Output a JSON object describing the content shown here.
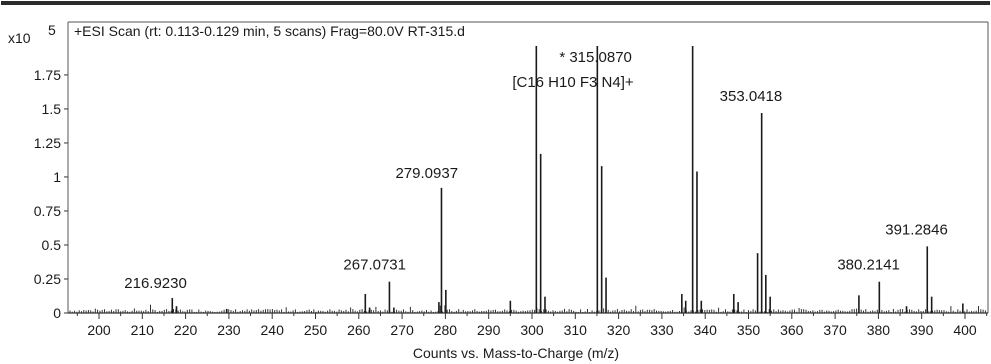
{
  "chart_data": {
    "type": "bar",
    "title": "+ESI Scan (rt: 0.113-0.129 min, 5 scans) Frag=80.0V RT-315.d",
    "xlabel": "Counts vs. Mass-to-Charge (m/z)",
    "ylabel": "",
    "y_multiplier_label": "x10",
    "y_multiplier_exponent": "5",
    "xlim": [
      193,
      406
    ],
    "ylim": [
      0,
      2.0
    ],
    "x_ticks": [
      200,
      210,
      220,
      230,
      240,
      250,
      260,
      270,
      280,
      290,
      300,
      310,
      320,
      330,
      340,
      350,
      360,
      370,
      380,
      390,
      400
    ],
    "y_ticks": [
      {
        "value": 0,
        "label": "0"
      },
      {
        "value": 0.25,
        "label": "0.25"
      },
      {
        "value": 0.5,
        "label": "0.5"
      },
      {
        "value": 0.75,
        "label": "0.75"
      },
      {
        "value": 1.0,
        "label": "1"
      },
      {
        "value": 1.25,
        "label": "1.25"
      },
      {
        "value": 1.5,
        "label": "1.5"
      },
      {
        "value": 1.75,
        "label": "1.75"
      }
    ],
    "grid": false,
    "bar_color": "#1a1a1a",
    "series": [
      {
        "peaks": [
          {
            "x": 216.923,
            "y": 0.11
          },
          {
            "x": 217.9,
            "y": 0.05
          },
          {
            "x": 229.5,
            "y": 0.03
          },
          {
            "x": 261.5,
            "y": 0.14
          },
          {
            "x": 262.5,
            "y": 0.04
          },
          {
            "x": 267.073,
            "y": 0.23
          },
          {
            "x": 268.1,
            "y": 0.04
          },
          {
            "x": 279.0937,
            "y": 0.92
          },
          {
            "x": 280.1,
            "y": 0.17
          },
          {
            "x": 278.5,
            "y": 0.08
          },
          {
            "x": 295.0,
            "y": 0.09
          },
          {
            "x": 301.0,
            "y": 1.97
          },
          {
            "x": 302.0,
            "y": 1.17
          },
          {
            "x": 303.0,
            "y": 0.12
          },
          {
            "x": 315.087,
            "y": 1.97
          },
          {
            "x": 316.09,
            "y": 1.08
          },
          {
            "x": 317.1,
            "y": 0.26
          },
          {
            "x": 334.6,
            "y": 0.14
          },
          {
            "x": 335.5,
            "y": 0.09
          },
          {
            "x": 337.1,
            "y": 1.97
          },
          {
            "x": 338.1,
            "y": 1.04
          },
          {
            "x": 339.1,
            "y": 0.09
          },
          {
            "x": 346.6,
            "y": 0.14
          },
          {
            "x": 347.6,
            "y": 0.08
          },
          {
            "x": 352.1,
            "y": 0.44
          },
          {
            "x": 353.0418,
            "y": 1.47
          },
          {
            "x": 354.0,
            "y": 0.28
          },
          {
            "x": 355.0,
            "y": 0.12
          },
          {
            "x": 375.5,
            "y": 0.13
          },
          {
            "x": 380.2141,
            "y": 0.23
          },
          {
            "x": 386.5,
            "y": 0.05
          },
          {
            "x": 391.2846,
            "y": 0.49
          },
          {
            "x": 392.3,
            "y": 0.12
          },
          {
            "x": 399.5,
            "y": 0.07
          }
        ]
      }
    ],
    "annotations": [
      {
        "text": "216.9230",
        "x": 216.923,
        "y": 0.11
      },
      {
        "text": "267.0731",
        "x": 267.073,
        "y": 0.23
      },
      {
        "text": "279.0937",
        "x": 279.0937,
        "y": 0.92
      },
      {
        "text": "* 315.0870",
        "x": 315.087,
        "y": 1.97
      },
      {
        "text": "[C16 H10 F3 N4]+",
        "x": 315.087,
        "y": 1.97
      },
      {
        "text": "353.0418",
        "x": 353.0418,
        "y": 1.47
      },
      {
        "text": "380.2141",
        "x": 380.2141,
        "y": 0.23
      },
      {
        "text": "391.2846",
        "x": 391.2846,
        "y": 0.49
      }
    ]
  }
}
